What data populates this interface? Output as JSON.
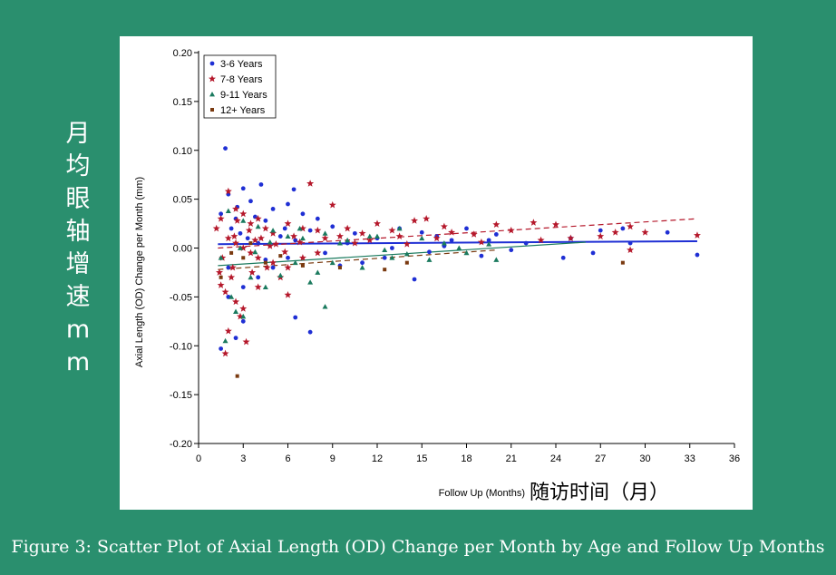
{
  "side_label": "月\n均\n眼\n轴\n增\n速\nm\nm",
  "caption": "Figure 3: Scatter Plot of Axial Length (OD) Change per Month by Age and Follow Up Months",
  "chart_data": {
    "type": "scatter",
    "ylabel": "Axial Length (OD) Change per Month (mm)",
    "xlabel": "Follow Up (Months)",
    "xlabel_extra": "随访时间（月）",
    "xlim": [
      0,
      36
    ],
    "ylim": [
      -0.2,
      0.2
    ],
    "xticks": [
      "0",
      "3",
      "6",
      "9",
      "12",
      "15",
      "18",
      "21",
      "24",
      "27",
      "30",
      "33",
      "36"
    ],
    "yticks": [
      "0.20",
      "0.15",
      "0.10",
      "0.05",
      "0.00",
      "-0.05",
      "-0.10",
      "-0.15",
      "-0.20"
    ],
    "legend": "top-left",
    "grid": false,
    "series": [
      {
        "name": "3-6 Years",
        "color": "#1f2fd4",
        "marker": "circle",
        "points": [
          [
            1.8,
            0.102
          ],
          [
            3.0,
            0.061
          ],
          [
            4.2,
            0.065
          ],
          [
            6.4,
            0.06
          ],
          [
            2.0,
            0.055
          ],
          [
            3.5,
            0.048
          ],
          [
            1.5,
            0.035
          ],
          [
            2.5,
            0.03
          ],
          [
            4.5,
            0.028
          ],
          [
            5.0,
            0.04
          ],
          [
            6.0,
            0.045
          ],
          [
            7.0,
            0.035
          ],
          [
            8.0,
            0.03
          ],
          [
            2.2,
            0.02
          ],
          [
            2.8,
            0.015
          ],
          [
            3.3,
            0.01
          ],
          [
            4.0,
            0.005
          ],
          [
            5.5,
            0.012
          ],
          [
            6.5,
            0.008
          ],
          [
            7.5,
            0.018
          ],
          [
            9.0,
            0.022
          ],
          [
            10.5,
            0.015
          ],
          [
            12.0,
            0.01
          ],
          [
            13.5,
            0.02
          ],
          [
            15.0,
            0.016
          ],
          [
            16.0,
            0.012
          ],
          [
            18.0,
            0.02
          ],
          [
            19.5,
            0.008
          ],
          [
            20.0,
            0.014
          ],
          [
            22.0,
            0.005
          ],
          [
            25.0,
            0.01
          ],
          [
            27.0,
            0.018
          ],
          [
            28.5,
            0.02
          ],
          [
            31.5,
            0.016
          ],
          [
            33.5,
            -0.007
          ],
          [
            24.5,
            -0.01
          ],
          [
            26.5,
            -0.005
          ],
          [
            19.0,
            -0.008
          ],
          [
            14.5,
            -0.032
          ],
          [
            7.5,
            -0.086
          ],
          [
            6.5,
            -0.071
          ],
          [
            3.0,
            -0.075
          ],
          [
            2.5,
            -0.092
          ],
          [
            1.5,
            -0.103
          ],
          [
            2.0,
            -0.05
          ],
          [
            3.0,
            -0.04
          ],
          [
            4.0,
            -0.03
          ],
          [
            5.0,
            -0.02
          ],
          [
            6.0,
            -0.01
          ],
          [
            8.5,
            -0.005
          ],
          [
            11.0,
            -0.015
          ],
          [
            13.0,
            0.0
          ],
          [
            16.5,
            0.002
          ],
          [
            2.0,
            -0.02
          ],
          [
            4.5,
            -0.012
          ],
          [
            10.0,
            0.005
          ],
          [
            17.0,
            0.008
          ],
          [
            21.0,
            -0.002
          ],
          [
            29.0,
            0.005
          ],
          [
            5.8,
            0.02
          ],
          [
            3.8,
            0.032
          ],
          [
            2.6,
            0.042
          ],
          [
            12.5,
            -0.01
          ],
          [
            9.5,
            -0.018
          ],
          [
            15.5,
            -0.004
          ]
        ]
      },
      {
        "name": "7-8 Years",
        "color": "#b5182b",
        "marker": "star",
        "points": [
          [
            7.5,
            0.066
          ],
          [
            2.0,
            0.058
          ],
          [
            9.0,
            0.044
          ],
          [
            1.5,
            0.03
          ],
          [
            2.5,
            0.04
          ],
          [
            3.0,
            0.035
          ],
          [
            3.5,
            0.025
          ],
          [
            4.0,
            0.03
          ],
          [
            4.5,
            0.02
          ],
          [
            5.0,
            0.015
          ],
          [
            6.0,
            0.025
          ],
          [
            7.0,
            0.02
          ],
          [
            8.0,
            0.018
          ],
          [
            9.5,
            0.012
          ],
          [
            10.0,
            0.02
          ],
          [
            11.0,
            0.015
          ],
          [
            12.0,
            0.025
          ],
          [
            13.0,
            0.018
          ],
          [
            14.5,
            0.028
          ],
          [
            15.3,
            0.03
          ],
          [
            16.5,
            0.022
          ],
          [
            17.0,
            0.016
          ],
          [
            20.0,
            0.024
          ],
          [
            22.5,
            0.026
          ],
          [
            24.0,
            0.024
          ],
          [
            25.0,
            0.01
          ],
          [
            27.0,
            0.012
          ],
          [
            28.0,
            0.016
          ],
          [
            29.0,
            0.022
          ],
          [
            30.0,
            0.016
          ],
          [
            33.5,
            0.013
          ],
          [
            29.0,
            -0.002
          ],
          [
            19.0,
            0.006
          ],
          [
            23.0,
            0.008
          ],
          [
            2.0,
            0.01
          ],
          [
            2.5,
            0.005
          ],
          [
            3.0,
            0.0
          ],
          [
            3.5,
            -0.005
          ],
          [
            4.0,
            -0.01
          ],
          [
            5.0,
            -0.015
          ],
          [
            6.0,
            -0.02
          ],
          [
            7.0,
            -0.01
          ],
          [
            8.0,
            -0.005
          ],
          [
            2.2,
            -0.03
          ],
          [
            1.8,
            -0.045
          ],
          [
            1.5,
            -0.038
          ],
          [
            2.5,
            -0.055
          ],
          [
            3.0,
            -0.062
          ],
          [
            2.0,
            -0.085
          ],
          [
            2.8,
            -0.07
          ],
          [
            1.8,
            -0.108
          ],
          [
            3.2,
            -0.096
          ],
          [
            4.0,
            -0.04
          ],
          [
            5.5,
            -0.03
          ],
          [
            6.0,
            -0.048
          ],
          [
            1.2,
            0.02
          ],
          [
            2.4,
            0.012
          ],
          [
            3.8,
            0.008
          ],
          [
            4.8,
            0.002
          ],
          [
            5.8,
            -0.004
          ],
          [
            6.8,
            0.006
          ],
          [
            8.5,
            0.01
          ],
          [
            10.5,
            0.005
          ],
          [
            11.5,
            0.008
          ],
          [
            13.5,
            0.012
          ],
          [
            14.0,
            0.004
          ],
          [
            16.0,
            0.01
          ],
          [
            18.5,
            0.014
          ],
          [
            21.0,
            0.018
          ],
          [
            2.6,
            0.028
          ],
          [
            3.4,
            0.018
          ],
          [
            4.2,
            0.01
          ],
          [
            1.6,
            -0.01
          ],
          [
            1.4,
            -0.025
          ],
          [
            2.3,
            -0.02
          ],
          [
            3.6,
            -0.025
          ],
          [
            4.6,
            -0.02
          ],
          [
            5.2,
            0.004
          ],
          [
            6.4,
            0.012
          ]
        ]
      },
      {
        "name": "9-11 Years",
        "color": "#1a7a5e",
        "marker": "triangle",
        "points": [
          [
            2.0,
            0.038
          ],
          [
            3.0,
            0.028
          ],
          [
            4.0,
            0.022
          ],
          [
            5.0,
            0.018
          ],
          [
            6.0,
            0.012
          ],
          [
            7.0,
            0.01
          ],
          [
            8.5,
            0.015
          ],
          [
            10.0,
            0.008
          ],
          [
            12.0,
            0.012
          ],
          [
            13.5,
            0.02
          ],
          [
            15.0,
            0.01
          ],
          [
            16.5,
            0.005
          ],
          [
            17.5,
            0.0
          ],
          [
            19.5,
            0.004
          ],
          [
            20.0,
            -0.012
          ],
          [
            18.0,
            -0.005
          ],
          [
            14.0,
            -0.006
          ],
          [
            12.5,
            -0.002
          ],
          [
            11.0,
            -0.02
          ],
          [
            9.0,
            -0.015
          ],
          [
            8.0,
            -0.025
          ],
          [
            7.5,
            -0.035
          ],
          [
            8.5,
            -0.06
          ],
          [
            3.0,
            -0.07
          ],
          [
            2.5,
            -0.065
          ],
          [
            1.8,
            -0.095
          ],
          [
            2.2,
            -0.05
          ],
          [
            3.5,
            -0.03
          ],
          [
            4.5,
            -0.04
          ],
          [
            5.5,
            -0.028
          ],
          [
            6.5,
            -0.015
          ],
          [
            1.5,
            -0.01
          ],
          [
            2.8,
            0.0
          ],
          [
            3.8,
            -0.004
          ],
          [
            4.8,
            0.006
          ],
          [
            6.8,
            0.02
          ],
          [
            9.5,
            0.005
          ],
          [
            11.5,
            0.012
          ],
          [
            13.0,
            -0.01
          ],
          [
            15.5,
            -0.012
          ]
        ]
      },
      {
        "name": "12+ Years",
        "color": "#7a3a10",
        "marker": "square",
        "points": [
          [
            2.6,
            -0.131
          ],
          [
            3.0,
            -0.01
          ],
          [
            4.5,
            -0.015
          ],
          [
            5.5,
            -0.008
          ],
          [
            7.0,
            -0.018
          ],
          [
            9.5,
            -0.02
          ],
          [
            12.5,
            -0.022
          ],
          [
            14.0,
            -0.015
          ],
          [
            3.5,
            0.005
          ],
          [
            28.5,
            -0.015
          ],
          [
            1.5,
            -0.03
          ],
          [
            2.2,
            -0.005
          ]
        ]
      }
    ],
    "fit_lines": [
      {
        "series": "3-6 Years",
        "style": "solid",
        "from": [
          1.3,
          0.004
        ],
        "to": [
          33.5,
          0.007
        ]
      },
      {
        "series": "7-8 Years",
        "style": "dashed",
        "from": [
          1.3,
          0.0
        ],
        "to": [
          33.5,
          0.03
        ]
      },
      {
        "series": "9-11 Years",
        "style": "solid",
        "from": [
          1.3,
          -0.018
        ],
        "to": [
          26.0,
          0.006
        ]
      },
      {
        "series": "12+ Years",
        "style": "dashed",
        "from": [
          1.3,
          -0.022
        ],
        "to": [
          20.0,
          -0.002
        ]
      }
    ]
  }
}
